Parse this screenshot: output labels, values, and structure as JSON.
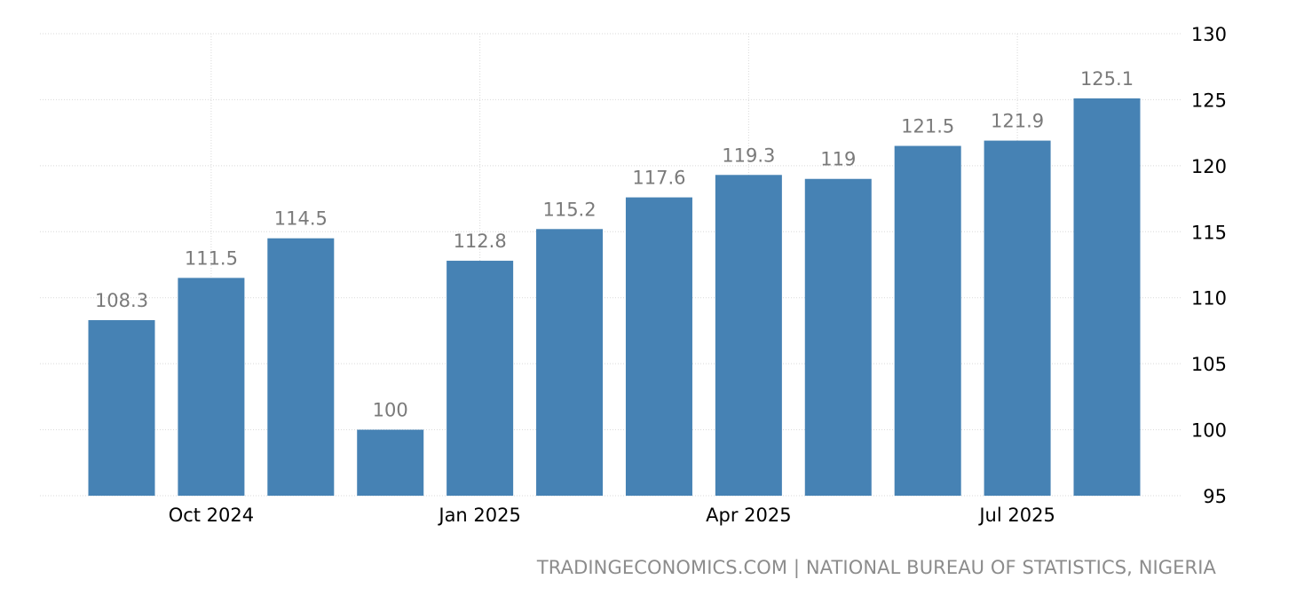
{
  "chart_data": {
    "type": "bar",
    "months": [
      "2024-09",
      "2024-10",
      "2024-11",
      "2024-12",
      "2025-01",
      "2025-02",
      "2025-03",
      "2025-04",
      "2025-05",
      "2025-06",
      "2025-07",
      "2025-08"
    ],
    "values": [
      108.3,
      111.5,
      114.5,
      100,
      112.8,
      115.2,
      117.6,
      119.3,
      119,
      121.5,
      121.9,
      125.1
    ],
    "value_labels": [
      "108.3",
      "111.5",
      "114.5",
      "100",
      "112.8",
      "115.2",
      "117.6",
      "119.3",
      "119",
      "121.5",
      "121.9",
      "125.1"
    ],
    "x_ticks": [
      {
        "month": "2024-10",
        "label": "Oct 2024"
      },
      {
        "month": "2025-01",
        "label": "Jan 2025"
      },
      {
        "month": "2025-04",
        "label": "Apr 2025"
      },
      {
        "month": "2025-07",
        "label": "Jul 2025"
      }
    ],
    "y_ticks": [
      95,
      100,
      105,
      110,
      115,
      120,
      125,
      130
    ],
    "ylim": [
      95,
      130
    ],
    "y_axis_position": "right",
    "grid": true,
    "bar_color": "#4682b4"
  },
  "source_text": "TRADINGECONOMICS.COM | NATIONAL BUREAU OF STATISTICS, NIGERIA"
}
